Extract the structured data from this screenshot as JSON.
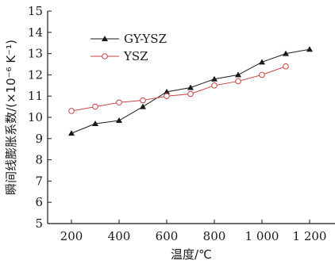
{
  "chart_data": {
    "type": "line",
    "title": "",
    "xlabel": "温度/℃",
    "ylabel": "瞬间线膨胀系数/(×10⁻⁶ K⁻¹)",
    "xlim": [
      100,
      1300
    ],
    "ylim": [
      5,
      15
    ],
    "xticks": [
      200,
      400,
      600,
      800,
      1000,
      1200
    ],
    "xtick_labels": [
      "200",
      "400",
      "600",
      "800",
      "1 000",
      "1 200"
    ],
    "yticks": [
      5,
      6,
      7,
      8,
      9,
      10,
      11,
      12,
      13,
      14,
      15
    ],
    "ytick_labels": [
      "5",
      "6",
      "7",
      "8",
      "9",
      "10",
      "11",
      "12",
      "13",
      "14",
      "15"
    ],
    "grid": false,
    "legend_position": "top-left",
    "series": [
      {
        "name": "GY-YSZ",
        "color": "#1a1a1a",
        "marker": "filled-triangle",
        "x": [
          200,
          300,
          400,
          500,
          600,
          700,
          800,
          900,
          1000,
          1100,
          1200
        ],
        "y": [
          9.25,
          9.7,
          9.85,
          10.5,
          11.2,
          11.4,
          11.8,
          12.0,
          12.6,
          13.0,
          13.2
        ]
      },
      {
        "name": "YSZ",
        "color": "#c8423f",
        "marker": "hollow-circle",
        "x": [
          200,
          300,
          400,
          500,
          600,
          700,
          800,
          900,
          1000,
          1100
        ],
        "y": [
          10.3,
          10.5,
          10.7,
          10.8,
          11.0,
          11.1,
          11.5,
          11.7,
          12.0,
          12.4
        ]
      }
    ]
  }
}
